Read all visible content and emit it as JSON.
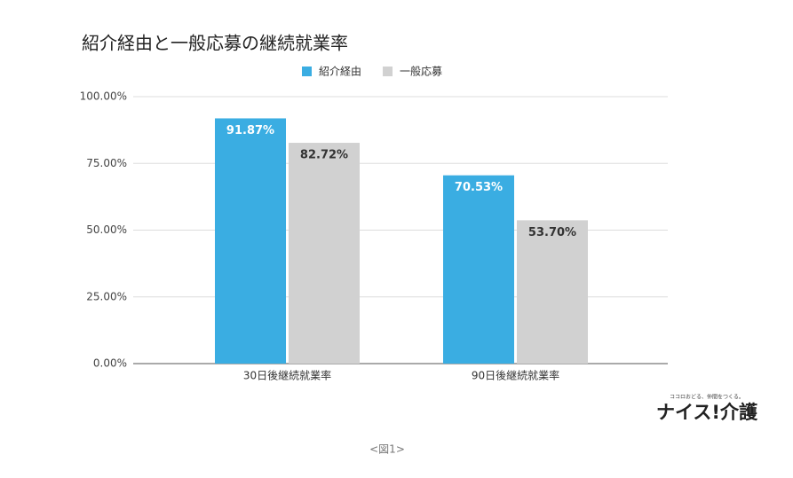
{
  "chart_data": {
    "type": "bar",
    "title": "紹介経由と一般応募の継続就業率",
    "categories": [
      "30日後継続就業率",
      "90日後継続就業率"
    ],
    "series": [
      {
        "name": "紹介経由",
        "color": "#3aade2",
        "values": [
          91.87,
          70.53
        ],
        "value_labels": [
          "91.87%",
          "70.53%"
        ],
        "label_color": "#ffffff"
      },
      {
        "name": "一般応募",
        "color": "#d1d1d1",
        "values": [
          82.72,
          53.7
        ],
        "value_labels": [
          "82.72%",
          "53.70%"
        ],
        "label_color": "#333333"
      }
    ],
    "ylim": [
      0,
      100
    ],
    "yticks": [
      {
        "value": 0,
        "label": "0.00%"
      },
      {
        "value": 25,
        "label": "25.00%"
      },
      {
        "value": 50,
        "label": "50.00%"
      },
      {
        "value": 75,
        "label": "75.00%"
      },
      {
        "value": 100,
        "label": "100.00%"
      }
    ],
    "grid": true,
    "legend": "top"
  },
  "logo": {
    "tagline": "ココロおどる、仲間をつくる。",
    "name": "ナイス!介護"
  },
  "caption": "<図1>"
}
